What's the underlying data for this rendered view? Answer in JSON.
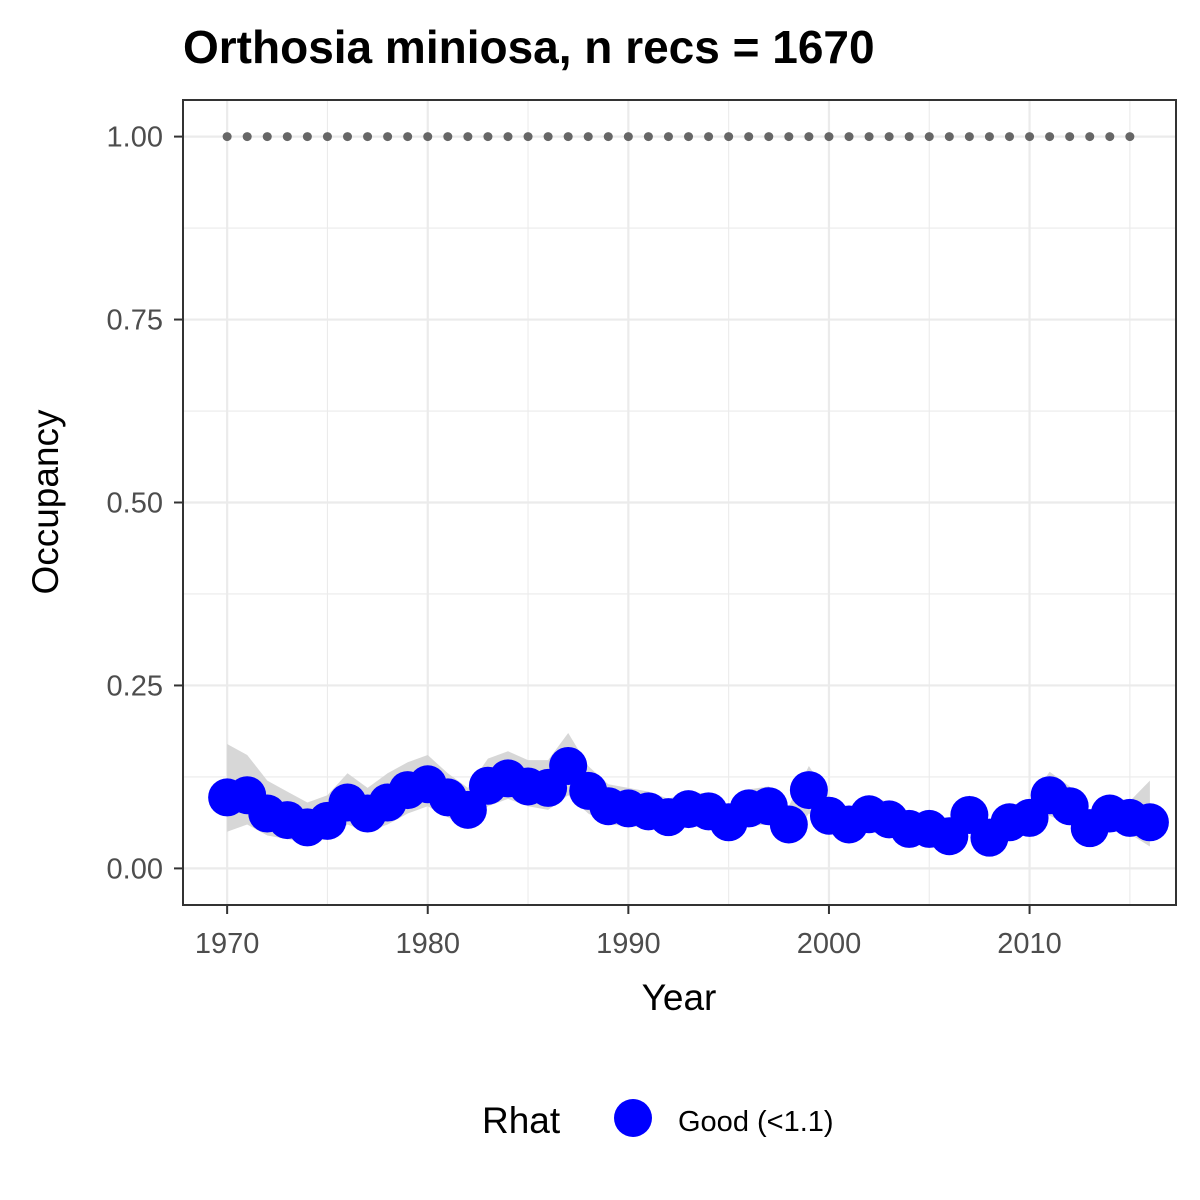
{
  "chart_data": {
    "type": "scatter",
    "title": "Orthosia miniosa, n recs = 1670",
    "xlabel": "Year",
    "ylabel": "Occupancy",
    "xlim": [
      1967.8,
      2017.3
    ],
    "ylim": [
      -0.05,
      1.05
    ],
    "x_ticks": [
      1970,
      1980,
      1990,
      2000,
      2010
    ],
    "x_tick_labels": [
      "1970",
      "1980",
      "1990",
      "2000",
      "2010"
    ],
    "y_ticks": [
      0.0,
      0.25,
      0.5,
      0.75,
      1.0
    ],
    "y_tick_labels": [
      "0.00",
      "0.25",
      "0.50",
      "0.75",
      "1.00"
    ],
    "grid": true,
    "legend_position": "bottom",
    "legend_title": "Rhat",
    "series": [
      {
        "name": "Good (<1.1)",
        "color": "#0000ff",
        "x": [
          1970,
          1971,
          1972,
          1973,
          1974,
          1975,
          1976,
          1977,
          1978,
          1979,
          1980,
          1981,
          1982,
          1983,
          1984,
          1985,
          1986,
          1987,
          1988,
          1989,
          1990,
          1991,
          1992,
          1993,
          1994,
          1995,
          1996,
          1997,
          1998,
          1999,
          2000,
          2001,
          2002,
          2003,
          2004,
          2005,
          2006,
          2007,
          2008,
          2009,
          2010,
          2011,
          2012,
          2013,
          2014,
          2015,
          2016
        ],
        "y": [
          0.097,
          0.1,
          0.075,
          0.066,
          0.056,
          0.065,
          0.09,
          0.075,
          0.09,
          0.107,
          0.115,
          0.097,
          0.08,
          0.113,
          0.123,
          0.112,
          0.11,
          0.14,
          0.106,
          0.085,
          0.082,
          0.078,
          0.07,
          0.081,
          0.078,
          0.063,
          0.082,
          0.085,
          0.06,
          0.107,
          0.072,
          0.06,
          0.074,
          0.067,
          0.054,
          0.054,
          0.044,
          0.073,
          0.042,
          0.063,
          0.069,
          0.1,
          0.085,
          0.055,
          0.075,
          0.069,
          0.063
        ]
      }
    ],
    "ribbon": {
      "color": "#d3d3d3",
      "x": [
        1970,
        1971,
        1972,
        1973,
        1974,
        1975,
        1976,
        1977,
        1978,
        1979,
        1980,
        1981,
        1982,
        1983,
        1984,
        1985,
        1986,
        1987,
        1988,
        1989,
        1990,
        1991,
        1992,
        1993,
        1994,
        1995,
        1996,
        1997,
        1998,
        1999,
        2000,
        2001,
        2002,
        2003,
        2004,
        2005,
        2006,
        2007,
        2008,
        2009,
        2010,
        2011,
        2012,
        2013,
        2014,
        2015,
        2016
      ],
      "lower": [
        0.05,
        0.06,
        0.045,
        0.04,
        0.035,
        0.04,
        0.06,
        0.05,
        0.06,
        0.075,
        0.085,
        0.07,
        0.055,
        0.085,
        0.095,
        0.085,
        0.08,
        0.1,
        0.075,
        0.06,
        0.058,
        0.055,
        0.048,
        0.058,
        0.055,
        0.042,
        0.058,
        0.06,
        0.038,
        0.075,
        0.05,
        0.04,
        0.05,
        0.045,
        0.035,
        0.035,
        0.028,
        0.05,
        0.027,
        0.042,
        0.047,
        0.072,
        0.06,
        0.035,
        0.052,
        0.047,
        0.03
      ],
      "upper": [
        0.17,
        0.155,
        0.12,
        0.105,
        0.09,
        0.1,
        0.13,
        0.11,
        0.13,
        0.145,
        0.155,
        0.13,
        0.11,
        0.15,
        0.16,
        0.148,
        0.148,
        0.185,
        0.14,
        0.115,
        0.11,
        0.105,
        0.095,
        0.105,
        0.102,
        0.085,
        0.108,
        0.112,
        0.085,
        0.14,
        0.098,
        0.083,
        0.1,
        0.09,
        0.075,
        0.075,
        0.062,
        0.1,
        0.06,
        0.086,
        0.093,
        0.132,
        0.112,
        0.077,
        0.1,
        0.092,
        0.12
      ]
    },
    "reference_points": {
      "color": "#666666",
      "x_start": 1970,
      "x_end": 2015,
      "x_step": 1,
      "y": 1.0
    }
  }
}
